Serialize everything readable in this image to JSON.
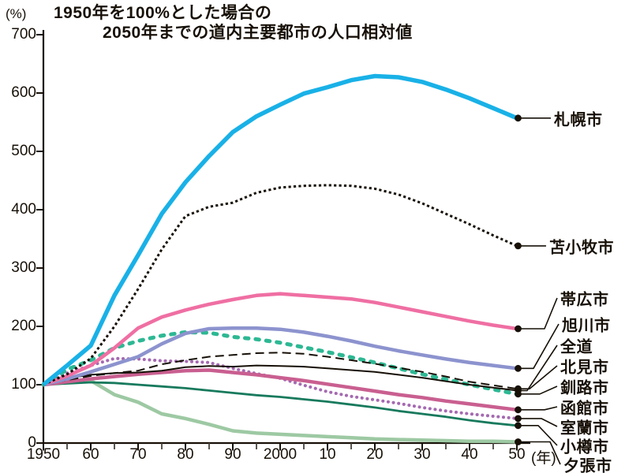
{
  "title": {
    "line1": "1950年を100%とした場合の",
    "line2": "2050年までの道内主要都市の人口相対値"
  },
  "chart_data": {
    "type": "line",
    "title": "1950年を100%とした場合の2050年までの道内主要都市の人口相対値",
    "y_axis": {
      "unit": "(%)",
      "ticks": [
        700,
        600,
        500,
        400,
        300,
        200,
        100,
        0
      ],
      "ylim": [
        0,
        700
      ]
    },
    "x_axis": {
      "unit": "(年)",
      "major_tick_years": [
        1950,
        1960,
        1970,
        1980,
        1990,
        2000,
        2010,
        2020,
        2030,
        2040,
        2050
      ],
      "major_tick_labels": [
        "1950",
        "60",
        "70",
        "80",
        "90",
        "2000",
        "10",
        "20",
        "30",
        "40",
        "50"
      ],
      "minor_tick_step": 5,
      "xlim": [
        1950,
        2050
      ]
    },
    "x_years": [
      1950,
      1955,
      1960,
      1965,
      1970,
      1975,
      1980,
      1985,
      1990,
      1995,
      2000,
      2005,
      2010,
      2015,
      2020,
      2025,
      2030,
      2035,
      2040,
      2045,
      2050
    ],
    "baseline_note": "1950 = 100%",
    "end_dot_color": "#171007",
    "legend_position": "right-labels",
    "series": [
      {
        "id": "yubari",
        "label": "夕張市",
        "color": "#9dc9a3",
        "line_style": "solid",
        "line_width": 4.5,
        "values": [
          100,
          104,
          107,
          83,
          70,
          50,
          42,
          32,
          21,
          17,
          15,
          13,
          11,
          9,
          7,
          6,
          5,
          4,
          3,
          3,
          2
        ]
      },
      {
        "id": "otaru",
        "label": "小樽市",
        "color": "#187a5d",
        "line_style": "solid",
        "line_width": 2.8,
        "values": [
          100,
          102,
          104,
          103,
          100,
          97,
          94,
          90,
          86,
          82,
          79,
          75,
          71,
          66,
          61,
          55,
          50,
          45,
          39,
          34,
          30
        ]
      },
      {
        "id": "muroran",
        "label": "室蘭市",
        "color": "#a569b1",
        "line_style": "beaded",
        "line_width": 4,
        "values": [
          100,
          120,
          133,
          145,
          144,
          141,
          140,
          138,
          128,
          119,
          111,
          99,
          88,
          80,
          74,
          68,
          61,
          55,
          50,
          46,
          42
        ]
      },
      {
        "id": "hakodate",
        "label": "函館市",
        "color": "#c95f90",
        "line_style": "solid",
        "line_width": 4.5,
        "values": [
          100,
          105,
          110,
          114,
          118,
          121,
          124,
          125,
          121,
          117,
          112,
          107,
          101,
          95,
          89,
          83,
          78,
          72,
          67,
          62,
          57
        ]
      },
      {
        "id": "kushiro",
        "label": "釧路市",
        "color": "#2db893",
        "line_style": "dashed-thick",
        "line_width": 5,
        "values": [
          100,
          126,
          142,
          163,
          175,
          184,
          190,
          189,
          182,
          178,
          172,
          164,
          156,
          147,
          138,
          128,
          118,
          109,
          100,
          92,
          84
        ]
      },
      {
        "id": "kitami",
        "label": "北見市",
        "color": "#171007",
        "line_style": "dashed",
        "line_width": 2,
        "values": [
          100,
          108,
          115,
          120,
          124,
          135,
          142,
          148,
          151,
          154,
          155,
          153,
          148,
          142,
          136,
          129,
          122,
          114,
          105,
          99,
          93
        ]
      },
      {
        "id": "zendo",
        "label": "全道",
        "color": "#171007",
        "line_style": "solid",
        "line_width": 2,
        "values": [
          100,
          111,
          117,
          120,
          121,
          124,
          130,
          132,
          131,
          133,
          132,
          131,
          128,
          125,
          122,
          117,
          112,
          106,
          100,
          95,
          90
        ]
      },
      {
        "id": "asahikawa",
        "label": "旭川市",
        "color": "#8c93ce",
        "line_style": "solid",
        "line_width": 4.5,
        "values": [
          100,
          110,
          122,
          135,
          148,
          170,
          188,
          196,
          197,
          197,
          195,
          190,
          183,
          175,
          166,
          158,
          151,
          144,
          138,
          133,
          128
        ]
      },
      {
        "id": "obihiro",
        "label": "帯広市",
        "color": "#ef6fa3",
        "line_style": "solid",
        "line_width": 4.5,
        "values": [
          100,
          115,
          133,
          163,
          197,
          216,
          228,
          238,
          246,
          253,
          256,
          253,
          250,
          247,
          241,
          233,
          225,
          217,
          209,
          202,
          196
        ]
      },
      {
        "id": "tomakomai",
        "label": "苫小牧市",
        "color": "#171007",
        "line_style": "dotted",
        "line_width": 3,
        "values": [
          100,
          118,
          145,
          200,
          264,
          332,
          389,
          405,
          412,
          429,
          438,
          441,
          442,
          441,
          436,
          426,
          411,
          393,
          375,
          356,
          338
        ]
      },
      {
        "id": "sapporo",
        "label": "札幌市",
        "color": "#19b1e7",
        "line_style": "solid",
        "line_width": 5.5,
        "values": [
          100,
          133,
          167,
          253,
          322,
          393,
          447,
          492,
          533,
          560,
          580,
          599,
          610,
          622,
          629,
          627,
          619,
          606,
          591,
          574,
          557
        ]
      }
    ]
  }
}
